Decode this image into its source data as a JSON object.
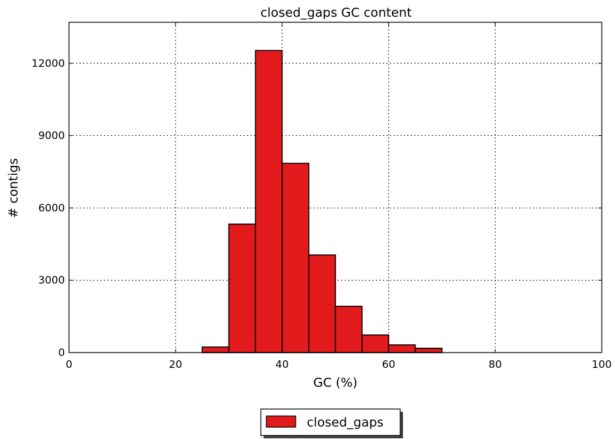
{
  "chart_data": {
    "type": "bar",
    "title": "closed_gaps GC content",
    "xlabel": "GC (%)",
    "ylabel": "# contigs",
    "xlim": [
      0,
      100
    ],
    "ylim": [
      0,
      13700
    ],
    "xticks": [
      0,
      20,
      40,
      60,
      80,
      100
    ],
    "yticks": [
      0,
      3000,
      6000,
      9000,
      12000
    ],
    "grid": true,
    "legend_position": "bottom-center",
    "bin_width": 5,
    "series": [
      {
        "name": "closed_gaps",
        "color": "#e31a1c",
        "bins": [
          {
            "x0": 25,
            "x1": 30,
            "value": 230
          },
          {
            "x0": 30,
            "x1": 35,
            "value": 5330
          },
          {
            "x0": 35,
            "x1": 40,
            "value": 12530
          },
          {
            "x0": 40,
            "x1": 45,
            "value": 7850
          },
          {
            "x0": 45,
            "x1": 50,
            "value": 4050
          },
          {
            "x0": 50,
            "x1": 55,
            "value": 1920
          },
          {
            "x0": 55,
            "x1": 60,
            "value": 730
          },
          {
            "x0": 60,
            "x1": 65,
            "value": 320
          },
          {
            "x0": 65,
            "x1": 70,
            "value": 180
          }
        ]
      }
    ]
  }
}
